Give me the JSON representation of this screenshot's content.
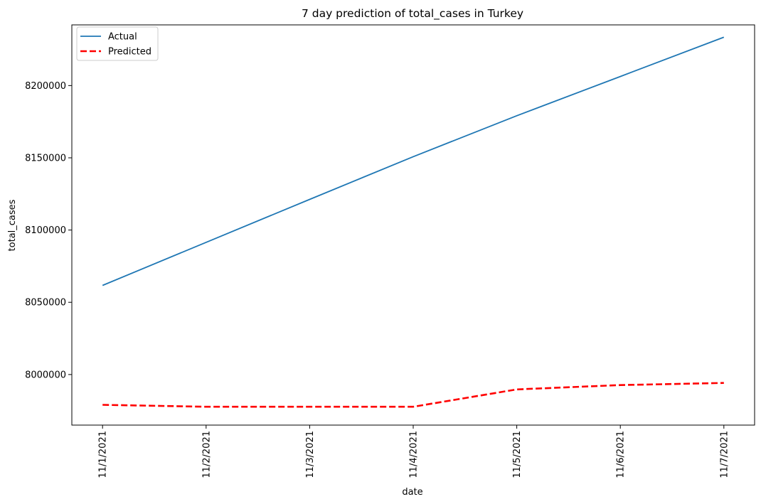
{
  "chart_data": {
    "type": "line",
    "title": "7 day prediction of total_cases in Turkey",
    "xlabel": "date",
    "ylabel": "total_cases",
    "categories": [
      "11/1/2021",
      "11/2/2021",
      "11/3/2021",
      "11/4/2021",
      "11/5/2021",
      "11/6/2021",
      "11/7/2021"
    ],
    "series": [
      {
        "name": "Actual",
        "color": "#1f77b4",
        "style": "solid",
        "values": [
          8061700,
          8091500,
          8121200,
          8150800,
          8179100,
          8206300,
          8233500
        ]
      },
      {
        "name": "Predicted",
        "color": "#ff0000",
        "style": "dashed",
        "values": [
          7979000,
          7977700,
          7977700,
          7977700,
          7989700,
          7992700,
          7994200
        ]
      }
    ],
    "yticks": [
      8000000,
      8050000,
      8100000,
      8150000,
      8200000
    ],
    "ylim": [
      7965000,
      8242000
    ],
    "grid": false,
    "legend_position": "top-left"
  }
}
